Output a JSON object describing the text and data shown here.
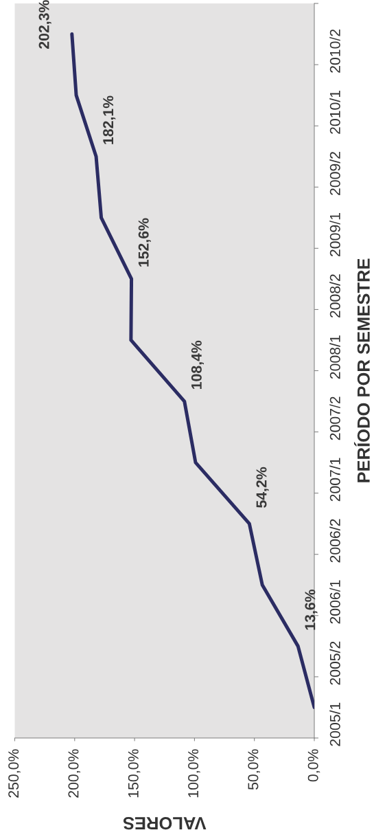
{
  "chart_data": {
    "type": "line",
    "orientation": "horizontal",
    "xlabel": "VALORES",
    "ylabel": "PERÍODO POR SEMESTRE",
    "categories": [
      "2010/2",
      "2010/1",
      "2009/2",
      "2009/1",
      "2008/2",
      "2008/1",
      "2007/2",
      "2007/1",
      "2006/2",
      "2006/1",
      "2005/2",
      "2005/1"
    ],
    "values": [
      202.3,
      198.7,
      182.1,
      177.8,
      152.6,
      153,
      108.4,
      99.1,
      54.2,
      43.4,
      13.6,
      0
    ],
    "value_labels": [
      "202,3%",
      null,
      "182,1%",
      null,
      "152,6%",
      null,
      "108,4%",
      null,
      "54,2%",
      null,
      "13,6%",
      null
    ],
    "color": "#2b2c63",
    "line_style": "solid",
    "xlim": [
      250,
      0
    ],
    "xticks": [
      {
        "value": 250,
        "label": "250,0%"
      },
      {
        "value": 200,
        "label": "200,0%"
      },
      {
        "value": 150,
        "label": "150,0%"
      },
      {
        "value": 100,
        "label": "100,0%"
      },
      {
        "value": 50,
        "label": "50,0%"
      },
      {
        "value": 0,
        "label": "0,0%"
      }
    ]
  }
}
